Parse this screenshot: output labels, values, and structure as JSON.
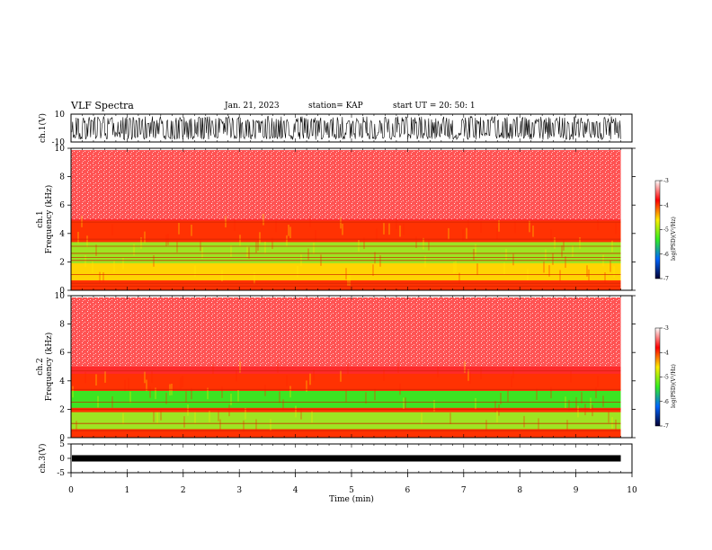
{
  "header": {
    "title": "VLF Spectra",
    "date": "Jan. 21, 2023",
    "station": "station= KAP",
    "start_ut": "start UT =   20: 50: 1"
  },
  "colors": {
    "spectrum_bg": "#ff0000",
    "mid_band_green": "#33ee22",
    "band_yellow": "#ffee00",
    "trace": "#000000"
  },
  "chart_data": [
    {
      "type": "line",
      "name_panel": "ch.1 waveform",
      "ylabel": "ch.1(V)",
      "ylim": [
        -10,
        10
      ],
      "yticks": [
        "10",
        "-10"
      ],
      "xlim": [
        0,
        10
      ],
      "description_values": {
        "amplitude_range_V": [
          -8,
          8
        ]
      }
    },
    {
      "type": "heatmap",
      "ylabel_line1": "ch.1",
      "ylabel_line2": "Frequency (kHz)",
      "ylim": [
        0,
        10
      ],
      "yticks": [
        "0",
        "2",
        "4",
        "6",
        "8",
        "10"
      ],
      "xlim": [
        0,
        10
      ],
      "time_extent_min": 9.8,
      "colorbar": {
        "label": "log(PSD)(V²/Hz)",
        "range": [
          -7,
          -3
        ],
        "ticks": [
          "-3",
          "-4",
          "-5",
          "-6",
          "-7"
        ]
      },
      "bands": [
        {
          "from_khz": 0.0,
          "to_khz": 0.7,
          "level": -3.8
        },
        {
          "from_khz": 0.7,
          "to_khz": 1.9,
          "level": -4.3
        },
        {
          "from_khz": 1.9,
          "to_khz": 3.4,
          "level": -4.6
        },
        {
          "from_khz": 3.4,
          "to_khz": 4.9,
          "level": -4.1
        },
        {
          "from_khz": 4.9,
          "to_khz": 10.0,
          "level": -3.3
        }
      ],
      "lines_khz": [
        0.3,
        0.5,
        1.1,
        2.1,
        2.3,
        2.6,
        3.1,
        3.6,
        4.8
      ]
    },
    {
      "type": "heatmap",
      "ylabel_line1": "ch.2",
      "ylabel_line2": "Frequency (kHz)",
      "ylim": [
        0,
        10
      ],
      "yticks": [
        "0",
        "2",
        "4",
        "6",
        "8",
        "10"
      ],
      "xlim": [
        0,
        10
      ],
      "time_extent_min": 9.8,
      "colorbar": {
        "label": "log(PSD)(V²/Hz)",
        "range": [
          -7,
          -3
        ],
        "ticks": [
          "-3",
          "-4",
          "-5",
          "-6",
          "-7"
        ]
      },
      "bands": [
        {
          "from_khz": 0.0,
          "to_khz": 0.6,
          "level": -3.7
        },
        {
          "from_khz": 0.6,
          "to_khz": 1.8,
          "level": -4.7
        },
        {
          "from_khz": 1.8,
          "to_khz": 2.1,
          "level": -4.0
        },
        {
          "from_khz": 2.1,
          "to_khz": 3.3,
          "level": -4.9
        },
        {
          "from_khz": 3.3,
          "to_khz": 4.5,
          "level": -4.0
        },
        {
          "from_khz": 4.5,
          "to_khz": 10.0,
          "level": -3.3
        }
      ],
      "lines_khz": [
        0.5,
        1.0,
        2.0,
        2.5,
        3.4,
        4.7
      ]
    },
    {
      "type": "line",
      "ylabel": "ch.3(V)",
      "ylim": [
        -5,
        5
      ],
      "yticks": [
        "5",
        "0",
        "-5"
      ],
      "xlim": [
        0,
        10
      ],
      "xlabel": "Time (min)",
      "xticks": [
        "0",
        "1",
        "2",
        "3",
        "4",
        "5",
        "6",
        "7",
        "8",
        "9",
        "10"
      ],
      "description_values": {
        "amplitude_range_V": [
          -1,
          1
        ]
      }
    }
  ]
}
